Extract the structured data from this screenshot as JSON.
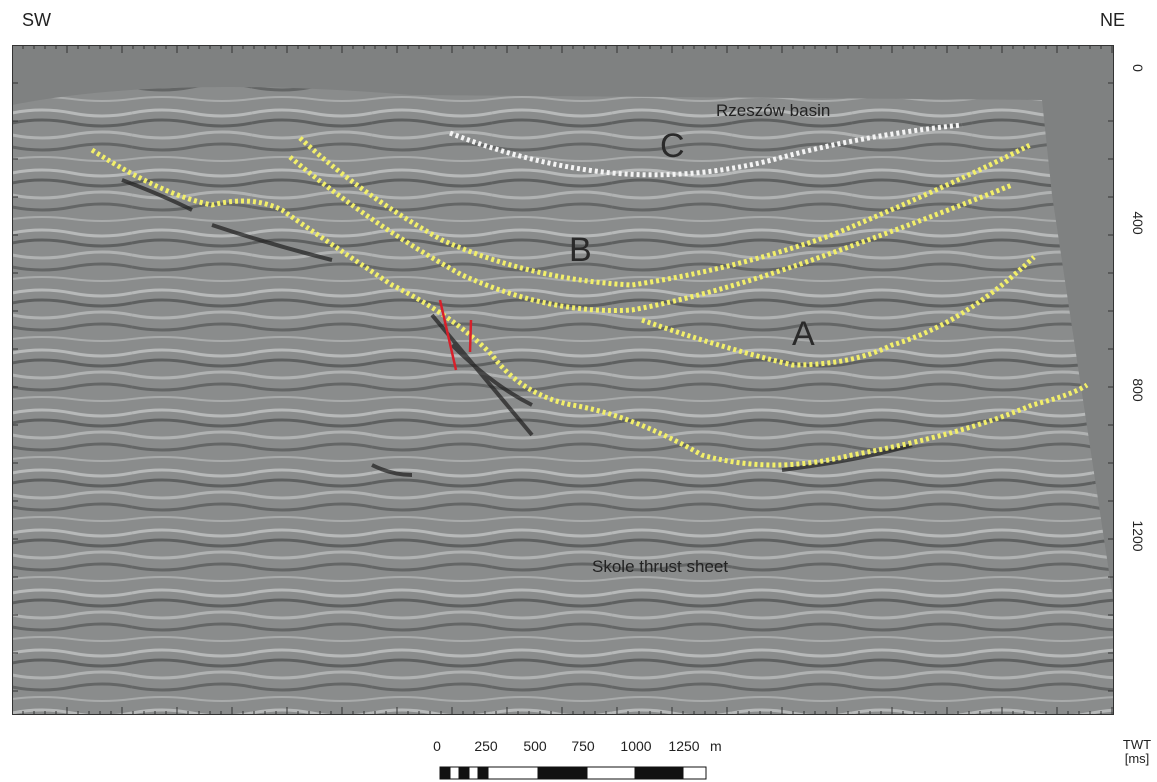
{
  "directions": {
    "left": "SW",
    "right": "NE"
  },
  "annotations": {
    "rzeszow": "Rzeszów basin",
    "skole": "Skole thrust sheet",
    "horizon_a": "A",
    "horizon_b": "B",
    "horizon_c": "C"
  },
  "depth_axis": {
    "unit_line1": "TWT",
    "unit_line2": "[ms]",
    "ticks": [
      "0",
      "400",
      "800",
      "1200"
    ]
  },
  "scale_bar": {
    "labels": [
      "0",
      "250",
      "500",
      "750",
      "1000",
      "1250"
    ],
    "unit": "m"
  },
  "colors": {
    "background": "#7f8181",
    "horizon": "#f2ef6a",
    "horizon_white": "#f4f4f4",
    "fault": "#d8202a"
  }
}
